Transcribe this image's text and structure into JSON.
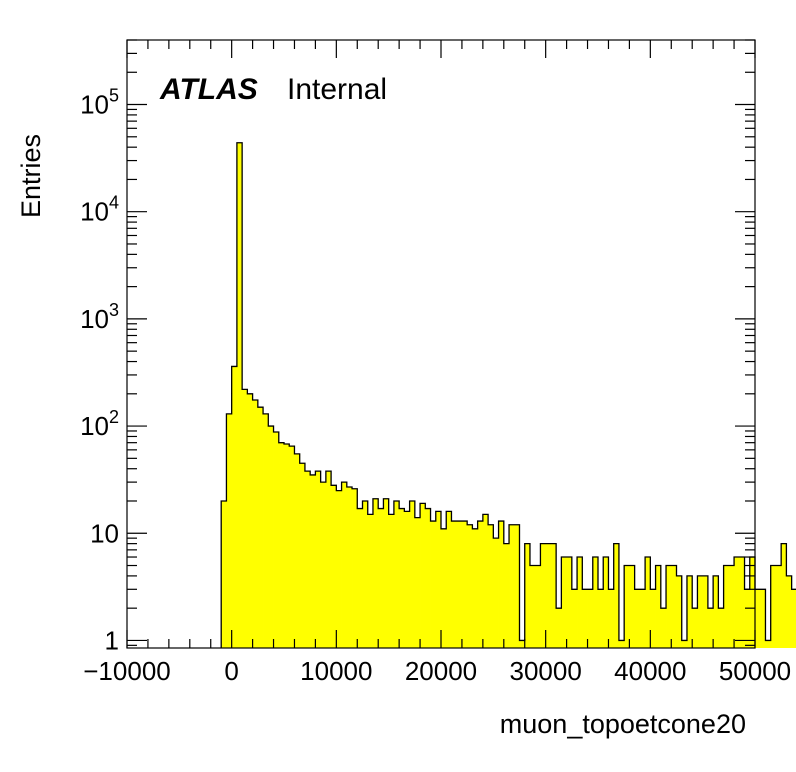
{
  "chart_data": {
    "type": "bar",
    "xlabel": "muon_topoetcone20",
    "ylabel": "Entries",
    "x_range": [
      -10000,
      50000
    ],
    "y_range": [
      0.85,
      400000
    ],
    "y_scale": "log",
    "fill_color": "#ffff00",
    "line_color": "#000000",
    "bin_width": 500,
    "bin_start": -1000,
    "x_ticks": [
      {
        "value": -10000,
        "label": "−10000"
      },
      {
        "value": 0,
        "label": "0"
      },
      {
        "value": 10000,
        "label": "10000"
      },
      {
        "value": 20000,
        "label": "20000"
      },
      {
        "value": 30000,
        "label": "30000"
      },
      {
        "value": 40000,
        "label": "40000"
      },
      {
        "value": 50000,
        "label": "50000"
      }
    ],
    "y_ticks": [
      {
        "value": 1,
        "base": "1",
        "exp": ""
      },
      {
        "value": 10,
        "base": "10",
        "exp": ""
      },
      {
        "value": 100,
        "base": "10",
        "exp": "2"
      },
      {
        "value": 1000,
        "base": "10",
        "exp": "3"
      },
      {
        "value": 10000,
        "base": "10",
        "exp": "4"
      },
      {
        "value": 100000,
        "base": "10",
        "exp": "5"
      }
    ],
    "values": [
      20,
      130,
      360,
      44000,
      220,
      200,
      175,
      150,
      130,
      100,
      88,
      70,
      68,
      65,
      55,
      45,
      38,
      35,
      38,
      30,
      38,
      28,
      25,
      30,
      27,
      26,
      17,
      20,
      15,
      21,
      17,
      21,
      15,
      20,
      17,
      16,
      20,
      14,
      19,
      17,
      13,
      16,
      11,
      16,
      13,
      13,
      13,
      12,
      11,
      13,
      15,
      12,
      9,
      13,
      8,
      12,
      12,
      1,
      8,
      5,
      5,
      8,
      8,
      8,
      2,
      6,
      6,
      3,
      6,
      3,
      3,
      6,
      3,
      6,
      3,
      8,
      1,
      5,
      5,
      3,
      3,
      6,
      3,
      5,
      2,
      5,
      5,
      4,
      1,
      4,
      2,
      4,
      4,
      2,
      4,
      2,
      5,
      5,
      6,
      6,
      3,
      6,
      3,
      3,
      1,
      5,
      5,
      8,
      4,
      3
    ]
  },
  "texts": {
    "atlas": "ATLAS",
    "internal": "Internal"
  }
}
